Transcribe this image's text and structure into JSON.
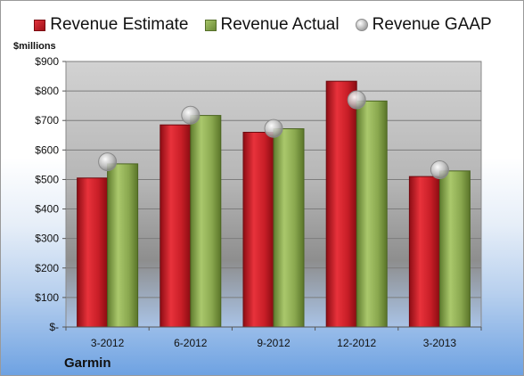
{
  "legend": {
    "estimate": "Revenue Estimate",
    "actual": "Revenue Actual",
    "gaap": "Revenue GAAP"
  },
  "units_label": "$millions",
  "company": "Garmin",
  "colors": {
    "estimate": "#c81e27",
    "actual": "#8aa84f",
    "gaap": "#c0c0c0"
  },
  "chart_data": {
    "type": "bar",
    "categories": [
      "3-2012",
      "6-2012",
      "9-2012",
      "12-2012",
      "3-2013"
    ],
    "series": [
      {
        "name": "Revenue Estimate",
        "type": "bar",
        "values": [
          505,
          685,
          660,
          833,
          510
        ]
      },
      {
        "name": "Revenue Actual",
        "type": "bar",
        "values": [
          553,
          717,
          672,
          766,
          529
        ]
      },
      {
        "name": "Revenue GAAP",
        "type": "scatter",
        "values": [
          560,
          718,
          673,
          770,
          533
        ]
      }
    ],
    "ylim": [
      0,
      900
    ],
    "yticks": [
      0,
      100,
      200,
      300,
      400,
      500,
      600,
      700,
      800,
      900
    ],
    "ytick_labels": [
      "$-",
      "$100",
      "$200",
      "$300",
      "$400",
      "$500",
      "$600",
      "$700",
      "$800",
      "$900"
    ],
    "ylabel": "$millions",
    "legend_position": "top",
    "grid": true
  }
}
